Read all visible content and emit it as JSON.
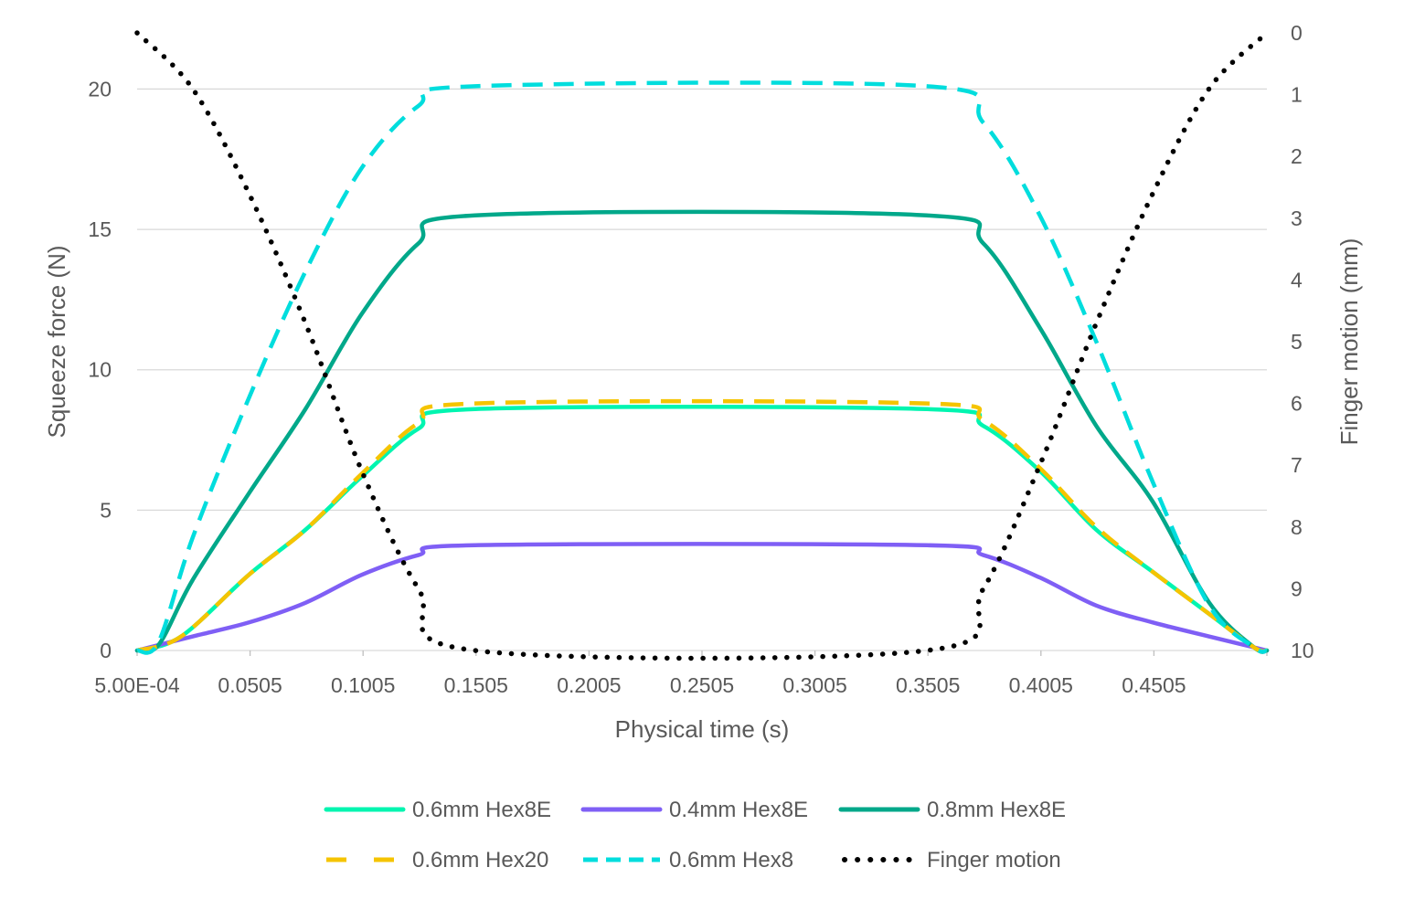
{
  "chart_data": {
    "type": "line",
    "title": "",
    "xlabel": "Physical time (s)",
    "ylabel": "Squeeze force (N)",
    "y2label": "Finger motion (mm)",
    "xlim": [
      0.0005,
      0.5005
    ],
    "ylim": [
      0,
      22
    ],
    "y2lim": [
      0,
      10
    ],
    "y2_inverted": true,
    "grid": true,
    "legend_position": "bottom",
    "x_ticks": [
      0.0005,
      0.0505,
      0.1005,
      0.1505,
      0.2005,
      0.2505,
      0.3005,
      0.3505,
      0.4005,
      0.4505
    ],
    "x_tick_labels": [
      "5.00E-04",
      "0.0505",
      "0.1005",
      "0.1505",
      "0.2005",
      "0.2505",
      "0.3005",
      "0.3505",
      "0.4005",
      "0.4505"
    ],
    "y_ticks": [
      0,
      5,
      10,
      15,
      20
    ],
    "y_tick_labels": [
      "0",
      "5",
      "10",
      "15",
      "20"
    ],
    "y2_ticks": [
      0,
      1,
      2,
      3,
      4,
      5,
      6,
      7,
      8,
      9,
      10
    ],
    "y2_tick_labels": [
      "0",
      "1",
      "2",
      "3",
      "4",
      "5",
      "6",
      "7",
      "8",
      "9",
      "10"
    ],
    "series": [
      {
        "name": "0.6mm Hex8E",
        "color": "#00F5B0",
        "style": "solid",
        "axis": "left",
        "x": [
          0.0005,
          0.02,
          0.05,
          0.075,
          0.1,
          0.125,
          0.15,
          0.35,
          0.375,
          0.4,
          0.425,
          0.45,
          0.475,
          0.495,
          0.5005
        ],
        "y": [
          0,
          0.5,
          2.7,
          4.3,
          6.2,
          7.9,
          8.6,
          8.6,
          8.0,
          6.4,
          4.3,
          2.8,
          1.3,
          0.1,
          0
        ]
      },
      {
        "name": "0.4mm Hex8E",
        "color": "#7F5FF5",
        "style": "solid",
        "axis": "left",
        "x": [
          0.0005,
          0.025,
          0.05,
          0.075,
          0.1,
          0.125,
          0.15,
          0.35,
          0.375,
          0.4,
          0.425,
          0.45,
          0.475,
          0.5005
        ],
        "y": [
          0,
          0.5,
          1.0,
          1.7,
          2.7,
          3.4,
          3.75,
          3.75,
          3.4,
          2.6,
          1.6,
          1.0,
          0.5,
          0
        ]
      },
      {
        "name": "0.8mm Hex8E",
        "color": "#00A88A",
        "style": "solid",
        "axis": "left",
        "x": [
          0.0005,
          0.01,
          0.025,
          0.05,
          0.075,
          0.1,
          0.125,
          0.15,
          0.35,
          0.375,
          0.4,
          0.425,
          0.45,
          0.475,
          0.495,
          0.5005
        ],
        "y": [
          0,
          0.2,
          2.5,
          5.6,
          8.6,
          12.0,
          14.5,
          15.5,
          15.5,
          14.5,
          11.5,
          8.0,
          5.3,
          1.7,
          0.1,
          0
        ]
      },
      {
        "name": "0.6mm Hex20",
        "color": "#F5C400",
        "style": "dash",
        "axis": "left",
        "x": [
          0.0005,
          0.02,
          0.05,
          0.075,
          0.1,
          0.125,
          0.15,
          0.35,
          0.375,
          0.4,
          0.425,
          0.45,
          0.475,
          0.495,
          0.5005
        ],
        "y": [
          0,
          0.5,
          2.7,
          4.3,
          6.3,
          8.1,
          8.8,
          8.8,
          8.2,
          6.5,
          4.4,
          2.8,
          1.3,
          0.1,
          0
        ]
      },
      {
        "name": "0.6mm Hex8",
        "color": "#00DDDD",
        "style": "dash",
        "axis": "left",
        "x": [
          0.0005,
          0.01,
          0.025,
          0.05,
          0.075,
          0.1,
          0.125,
          0.15,
          0.35,
          0.375,
          0.4,
          0.425,
          0.45,
          0.475,
          0.495,
          0.5005
        ],
        "y": [
          0,
          0.3,
          4.0,
          9.0,
          13.5,
          17.2,
          19.4,
          20.1,
          20.1,
          18.8,
          15.5,
          11.0,
          6.0,
          1.6,
          0.1,
          0
        ]
      },
      {
        "name": "Finger motion",
        "color": "#000000",
        "style": "dot",
        "axis": "right",
        "x": [
          0.0005,
          0.025,
          0.05,
          0.075,
          0.1,
          0.125,
          0.15,
          0.35,
          0.375,
          0.4,
          0.425,
          0.45,
          0.475,
          0.5005
        ],
        "y": [
          0,
          0.9,
          2.6,
          4.7,
          7.1,
          9.0,
          10,
          10,
          9.0,
          7.0,
          4.7,
          2.6,
          0.9,
          0
        ]
      }
    ]
  }
}
